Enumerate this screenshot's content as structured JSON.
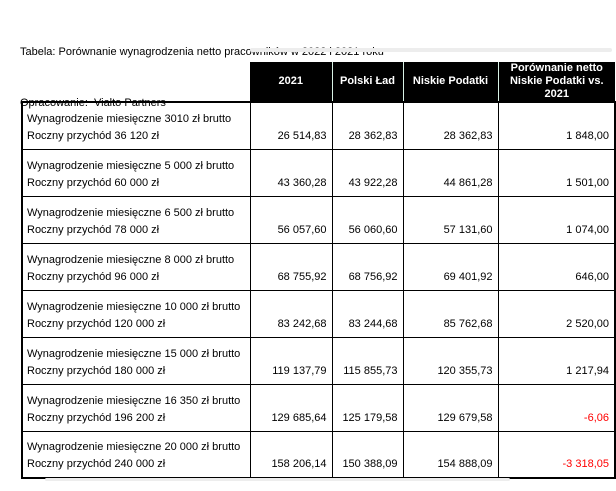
{
  "page": {
    "title": "Tabela: Porównanie wynagrodzenia netto pracowników w 2022 i 2021 roku",
    "subtitle": "Opracowanie:  Vialto Partners"
  },
  "colors": {
    "header_bg": "#000000",
    "header_text": "#ffffff",
    "header_divider": "#d9f2e6",
    "negative_value": "#ff0000",
    "border": "#000000"
  },
  "table": {
    "columns": [
      "2021",
      "Polski Ład",
      "Niskie Podatki",
      "Porównanie netto Niskie Podatki vs. 2021"
    ],
    "rows": [
      {
        "label_line1": "Wynagrodzenie miesięczne 3010 zł brutto",
        "label_line2": "Roczny przychód 36 120 zł",
        "values": [
          "26 514,83",
          "28 362,83",
          "28 362,83",
          "1 848,00"
        ]
      },
      {
        "label_line1": "Wynagrodzenie miesięczne 5 000 zł brutto",
        "label_line2": "Roczny przychód 60 000 zł",
        "values": [
          "43 360,28",
          "43 922,28",
          "44 861,28",
          "1 501,00"
        ]
      },
      {
        "label_line1": "Wynagrodzenie miesięczne 6 500 zł brutto",
        "label_line2": "Roczny przychód 78 000 zł",
        "values": [
          "56 057,60",
          "56 060,60",
          "57 131,60",
          "1 074,00"
        ]
      },
      {
        "label_line1": "Wynagrodzenie miesięczne 8 000 zł brutto",
        "label_line2": "Roczny przychód 96 000 zł",
        "values": [
          "68 755,92",
          "68 756,92",
          "69 401,92",
          "646,00"
        ]
      },
      {
        "label_line1": "Wynagrodzenie miesięczne 10 000 zł brutto",
        "label_line2": "Roczny przychód 120 000 zł",
        "values": [
          "83 242,68",
          "83 244,68",
          "85 762,68",
          "2 520,00"
        ]
      },
      {
        "label_line1": "Wynagrodzenie miesięczne 15 000 zł brutto",
        "label_line2": "Roczny przychód 180 000 zł",
        "values": [
          "119 137,79",
          "115 855,73",
          "120 355,73",
          "1 217,94"
        ]
      },
      {
        "label_line1": "Wynagrodzenie miesięczne 16 350 zł brutto",
        "label_line2": "Roczny przychód 196 200 zł",
        "values": [
          "129 685,64",
          "125 179,58",
          "129 679,58",
          "-6,06"
        ]
      },
      {
        "label_line1": "Wynagrodzenie miesięczne 20 000 zł brutto",
        "label_line2": "Roczny przychód 240 000 zł",
        "values": [
          "158 206,14",
          "150 388,09",
          "154 888,09",
          "-3 318,05"
        ]
      }
    ]
  }
}
